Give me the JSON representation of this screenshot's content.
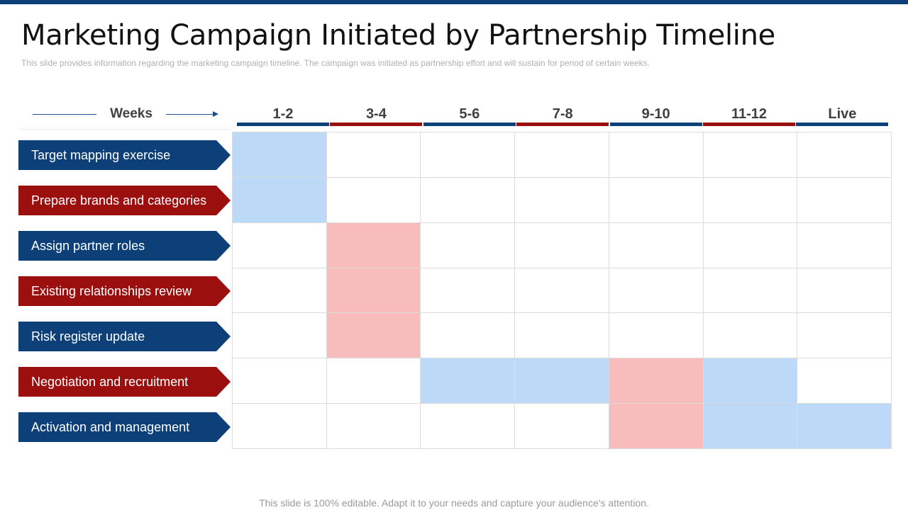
{
  "title": "Marketing Campaign Initiated by Partnership Timeline",
  "subtitle": "This slide provides  information  regarding  the marketing  campaign  timeline.  The  campaign  was  initiated  as  partnership  effort  and  will  sustain for  period  of  certain  weeks.",
  "weeks_label": "Weeks",
  "colors": {
    "navy": "#0d3f78",
    "red": "#9b0f0f",
    "blue_fill": "#bcd9f7",
    "pink_fill": "#f8bcbc",
    "grid_line": "#dcdcdc"
  },
  "columns": [
    {
      "label": "1-2",
      "color": "navy"
    },
    {
      "label": "3-4",
      "color": "red"
    },
    {
      "label": "5-6",
      "color": "navy"
    },
    {
      "label": "7-8",
      "color": "red"
    },
    {
      "label": "9-10",
      "color": "navy"
    },
    {
      "label": "11-12",
      "color": "red"
    },
    {
      "label": "Live",
      "color": "navy"
    }
  ],
  "rows": [
    {
      "label": "Target mapping exercise",
      "color": "navy"
    },
    {
      "label": "Prepare brands and categories",
      "color": "red"
    },
    {
      "label": "Assign partner roles",
      "color": "navy"
    },
    {
      "label": "Existing relationships review",
      "color": "red"
    },
    {
      "label": "Risk register update",
      "color": "navy"
    },
    {
      "label": "Negotiation and recruitment",
      "color": "red"
    },
    {
      "label": "Activation and management",
      "color": "navy"
    }
  ],
  "schedule": [
    [
      "blue",
      "",
      "",
      "",
      "",
      "",
      ""
    ],
    [
      "blue",
      "",
      "",
      "",
      "",
      "",
      ""
    ],
    [
      "",
      "pink",
      "",
      "",
      "",
      "",
      ""
    ],
    [
      "",
      "pink",
      "",
      "",
      "",
      "",
      ""
    ],
    [
      "",
      "pink",
      "",
      "",
      "",
      "",
      ""
    ],
    [
      "",
      "",
      "blue",
      "blue",
      "pink",
      "blue",
      ""
    ],
    [
      "",
      "",
      "",
      "",
      "pink",
      "blue",
      "blue"
    ]
  ],
  "footer": "This slide is 100% editable. Adapt it to your needs and capture your audience's attention."
}
